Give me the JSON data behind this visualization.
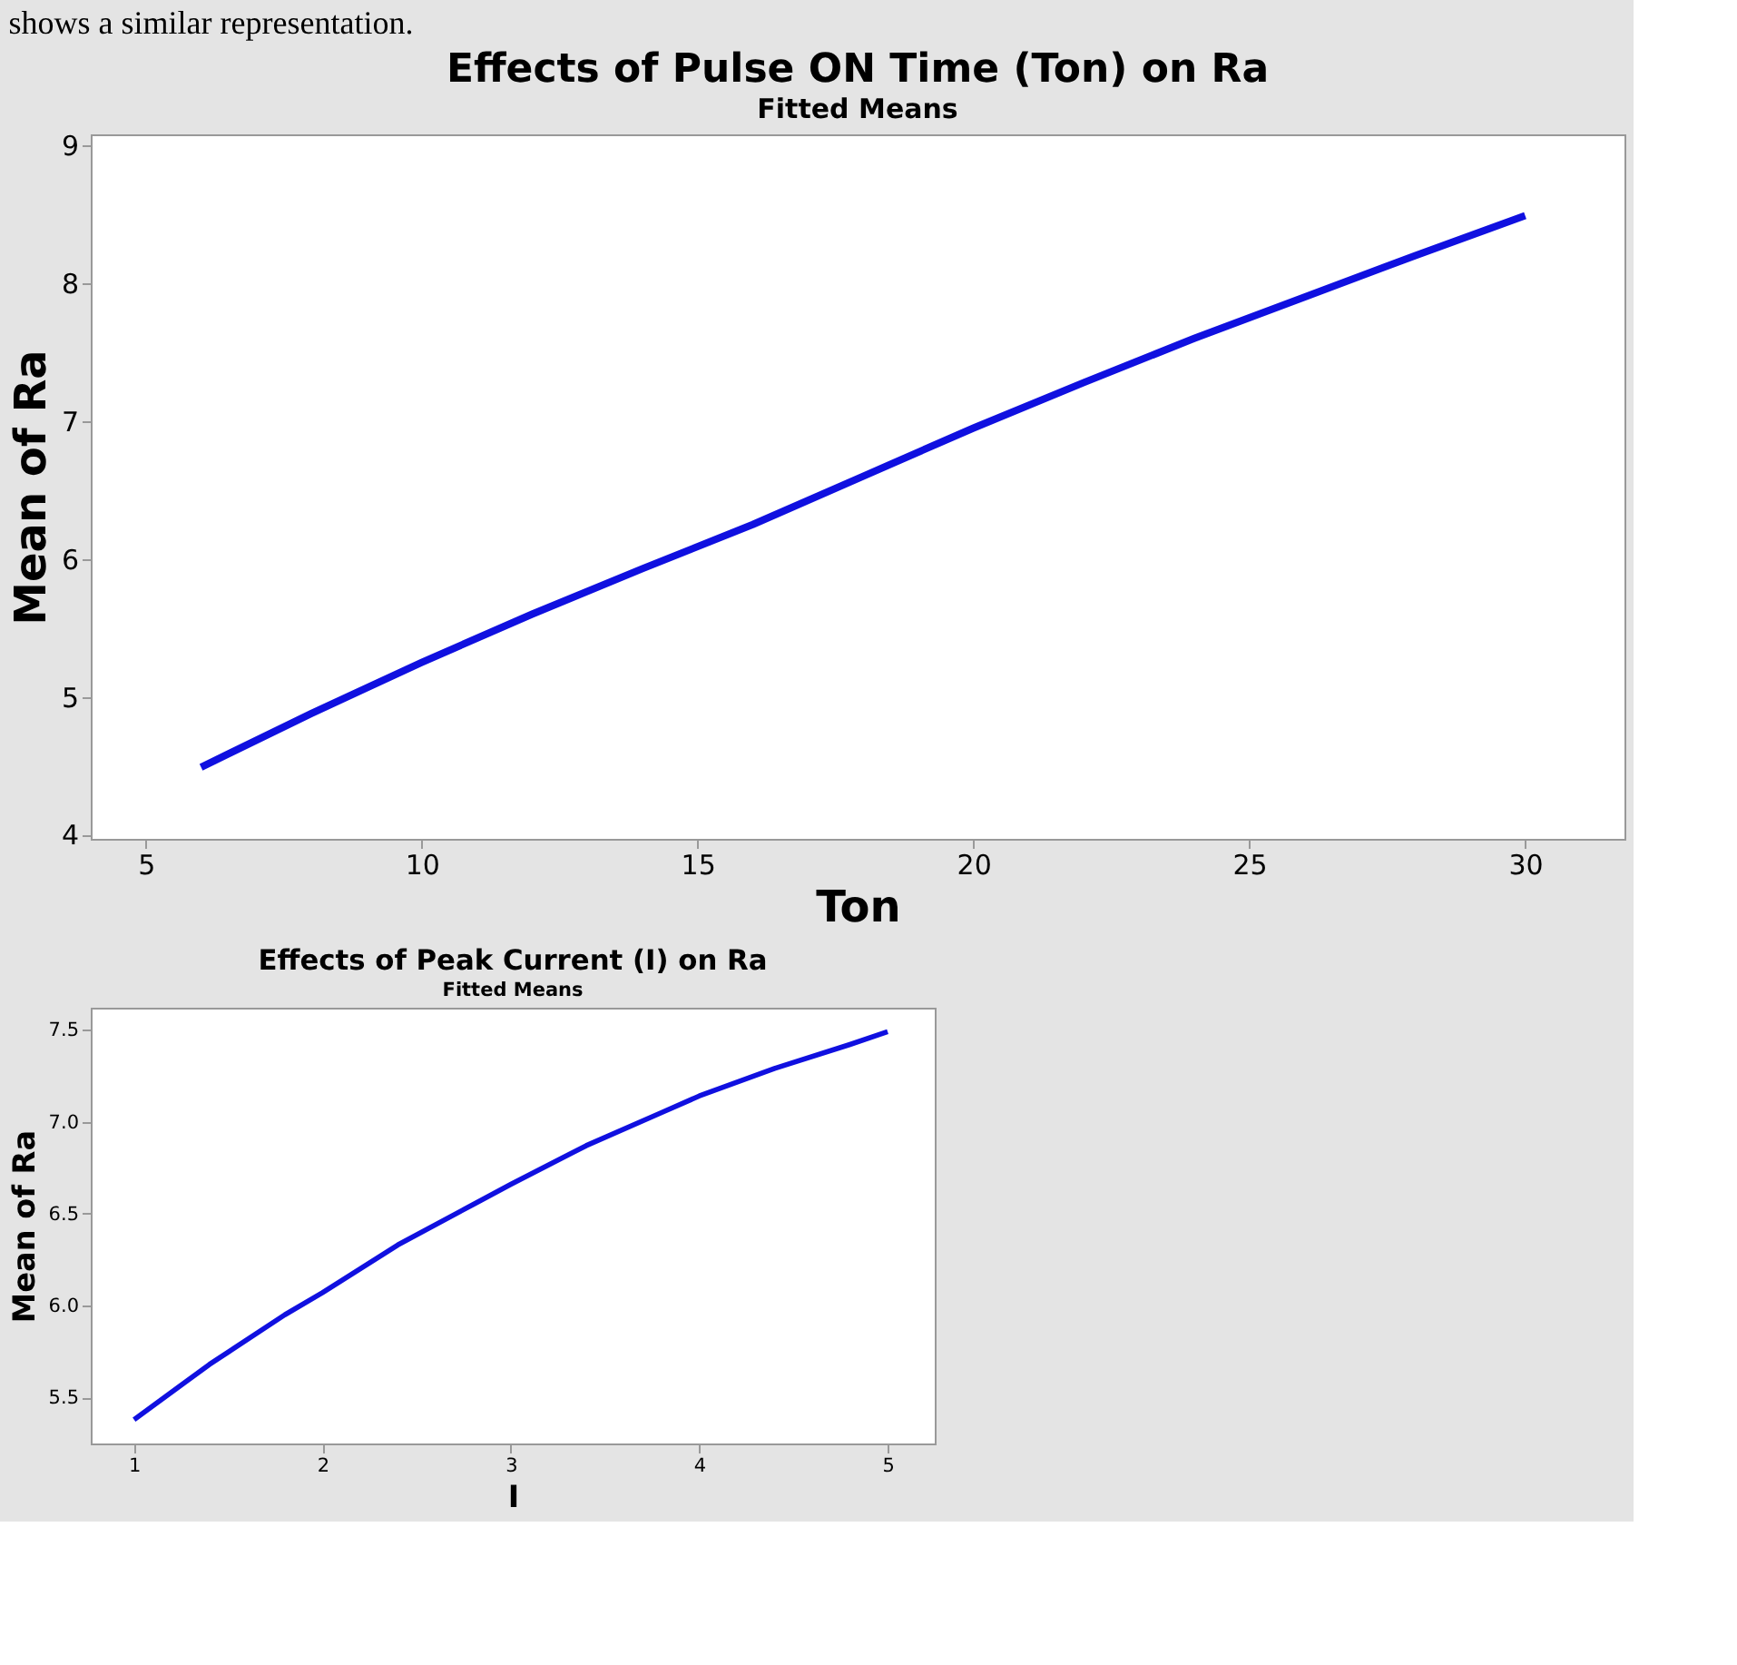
{
  "chart_data": [
    {
      "type": "line",
      "title": "Effects of Pulse ON Time (Ton) on Ra",
      "subtitle": "Fitted Means",
      "xlabel": "Ton",
      "ylabel": "Mean of Ra",
      "annotations": [
        "shows a similar representation."
      ],
      "x": [
        6,
        8,
        10,
        12,
        14,
        16,
        18,
        20,
        22,
        24,
        26,
        28,
        30
      ],
      "series": [
        {
          "color": "#1010e0",
          "values": [
            4.49,
            4.88,
            5.25,
            5.6,
            5.93,
            6.25,
            6.6,
            6.95,
            7.28,
            7.6,
            7.9,
            8.2,
            8.49
          ]
        }
      ],
      "xlim": [
        4,
        31.8
      ],
      "xticks": [
        5,
        10,
        15,
        20,
        25,
        30
      ],
      "ylim": [
        3.97,
        9.08
      ],
      "yticks": [
        4,
        5,
        6,
        7,
        8,
        9
      ],
      "grid": false,
      "marker": "none",
      "line_style": "solid"
    },
    {
      "type": "line",
      "title": "Effects of Peak Current (I) on Ra",
      "subtitle": "Fitted Means",
      "xlabel": "I",
      "ylabel": "Mean of Ra",
      "x": [
        1,
        1.4,
        1.8,
        2,
        2.4,
        2.8,
        3,
        3.4,
        3.8,
        4,
        4.4,
        4.8,
        5
      ],
      "series": [
        {
          "color": "#1010e0",
          "values": [
            5.38,
            5.68,
            5.95,
            6.07,
            6.33,
            6.55,
            6.66,
            6.87,
            7.05,
            7.14,
            7.29,
            7.42,
            7.49
          ]
        }
      ],
      "xlim": [
        0.77,
        5.25
      ],
      "xticks": [
        1,
        2,
        3,
        4,
        5
      ],
      "ylim": [
        5.25,
        7.62
      ],
      "yticks": [
        {
          "value": 5.5,
          "label": "5.5"
        },
        {
          "value": 6,
          "label": "6.0"
        },
        {
          "value": 6.5,
          "label": "6.5"
        },
        {
          "value": 7,
          "label": "7.0"
        },
        {
          "value": 7.5,
          "label": "7.5"
        }
      ],
      "grid": false,
      "marker": "none",
      "line_style": "solid"
    }
  ]
}
